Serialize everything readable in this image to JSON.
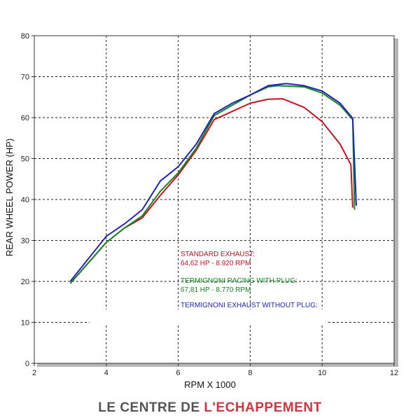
{
  "chart_data": {
    "type": "line",
    "xlabel": "RPM X 1000",
    "ylabel": "REAR WHEEL POWER (HP)",
    "xlim": [
      2,
      12
    ],
    "ylim": [
      0,
      80
    ],
    "x_ticks": [
      2,
      4,
      6,
      8,
      10,
      12
    ],
    "y_ticks": [
      0,
      10,
      20,
      30,
      40,
      50,
      60,
      70,
      80
    ],
    "grid": true,
    "series": [
      {
        "name": "STANDARD EXHAUST",
        "annotation": "64,62 HP - 8.920 RPM",
        "color": "#cc1122",
        "x": [
          3.0,
          3.5,
          4.0,
          4.5,
          5.0,
          5.5,
          6.0,
          6.5,
          7.0,
          7.5,
          8.0,
          8.5,
          8.9,
          9.5,
          10.0,
          10.5,
          10.8,
          10.85
        ],
        "y": [
          19.5,
          24.5,
          29.5,
          33.0,
          35.5,
          41.0,
          46.0,
          52.0,
          59.5,
          61.5,
          63.5,
          64.5,
          64.6,
          62.5,
          59.0,
          53.5,
          48.5,
          38.0
        ]
      },
      {
        "name": "TERMIGNONI RACING WITH PLUG",
        "annotation": "67,81 HP - 8.770 RPM",
        "color": "#118822",
        "x": [
          3.0,
          3.5,
          4.0,
          4.5,
          5.0,
          5.5,
          6.0,
          6.5,
          7.0,
          7.5,
          8.0,
          8.5,
          8.77,
          9.5,
          10.0,
          10.5,
          10.85,
          10.9
        ],
        "y": [
          19.5,
          24.5,
          29.5,
          33.0,
          36.0,
          42.0,
          46.5,
          52.5,
          60.5,
          63.0,
          65.5,
          67.5,
          67.8,
          67.5,
          66.0,
          63.0,
          59.5,
          37.5
        ]
      },
      {
        "name": "TERMIGNONI EXHAUST WITHOUT PLUG",
        "color": "#2222bb",
        "x": [
          3.0,
          3.5,
          4.0,
          4.5,
          5.0,
          5.5,
          6.0,
          6.5,
          7.0,
          7.5,
          8.0,
          8.5,
          9.0,
          9.5,
          10.0,
          10.5,
          10.85,
          10.95
        ],
        "y": [
          20.0,
          25.5,
          31.0,
          34.0,
          37.5,
          44.5,
          48.0,
          53.5,
          61.0,
          63.5,
          65.5,
          67.8,
          68.3,
          67.8,
          66.5,
          63.5,
          59.8,
          38.5
        ]
      }
    ]
  },
  "branding": {
    "part1": "LE CENTRE DE ",
    "part2": "L'ECHAPPEMENT"
  }
}
